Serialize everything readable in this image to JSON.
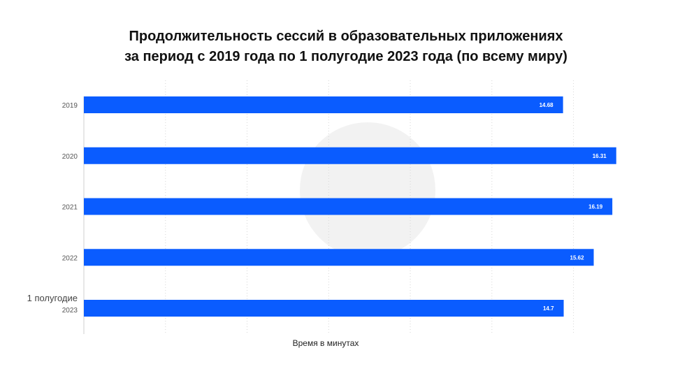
{
  "chart_data": {
    "type": "bar",
    "orientation": "horizontal",
    "title_line1": "Продолжительность сессий в образовательных приложениях",
    "title_line2": "за период с 2019 года по 1 полугодие 2023 года (по всему миру)",
    "xlabel": "Время в минутах",
    "ylabel": "",
    "categories": [
      {
        "line1": "2019",
        "line2": ""
      },
      {
        "line1": "2020",
        "line2": ""
      },
      {
        "line1": "2021",
        "line2": ""
      },
      {
        "line1": "2022",
        "line2": ""
      },
      {
        "line1": "1 полугодие",
        "line2": "2023"
      }
    ],
    "values": [
      14.68,
      16.31,
      16.19,
      15.62,
      14.7
    ],
    "value_labels": [
      "14.68",
      "16.31",
      "16.19",
      "15.62",
      "14.7"
    ],
    "xlim": [
      0,
      17
    ],
    "grid": true,
    "bar_color": "#0a5cff"
  }
}
